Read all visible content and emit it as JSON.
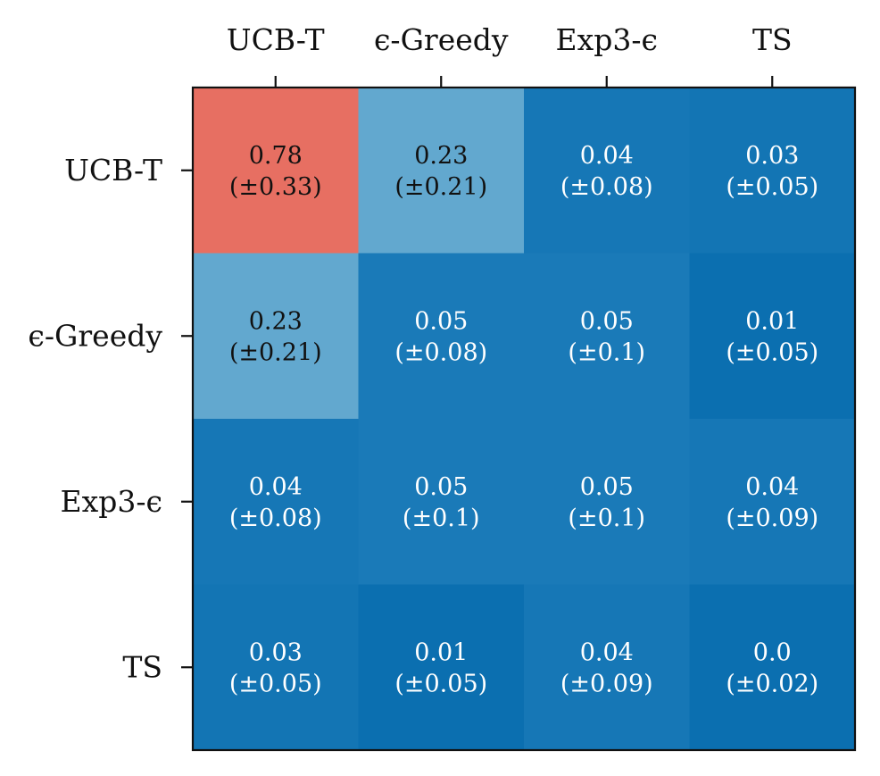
{
  "chart_data": {
    "type": "heatmap",
    "x_categories": [
      "UCB-T",
      "ϵ-Greedy",
      "Exp3-ϵ",
      "TS"
    ],
    "y_categories": [
      "UCB-T",
      "ϵ-Greedy",
      "Exp3-ϵ",
      "TS"
    ],
    "values": [
      [
        0.78,
        0.23,
        0.04,
        0.03
      ],
      [
        0.23,
        0.05,
        0.05,
        0.01
      ],
      [
        0.04,
        0.05,
        0.05,
        0.04
      ],
      [
        0.03,
        0.01,
        0.04,
        0.0
      ]
    ],
    "errors": [
      [
        0.33,
        0.21,
        0.08,
        0.05
      ],
      [
        0.21,
        0.08,
        0.1,
        0.05
      ],
      [
        0.08,
        0.1,
        0.1,
        0.09
      ],
      [
        0.05,
        0.05,
        0.09,
        0.02
      ]
    ],
    "value_labels": [
      [
        "0.78",
        "0.23",
        "0.04",
        "0.03"
      ],
      [
        "0.23",
        "0.05",
        "0.05",
        "0.01"
      ],
      [
        "0.04",
        "0.05",
        "0.05",
        "0.04"
      ],
      [
        "0.03",
        "0.01",
        "0.04",
        "0.0"
      ]
    ],
    "error_labels": [
      [
        "(±0.33)",
        "(±0.21)",
        "(±0.08)",
        "(±0.05)"
      ],
      [
        "(±0.21)",
        "(±0.08)",
        "(±0.1)",
        "(±0.05)"
      ],
      [
        "(±0.08)",
        "(±0.1)",
        "(±0.1)",
        "(±0.09)"
      ],
      [
        "(±0.05)",
        "(±0.05)",
        "(±0.09)",
        "(±0.02)"
      ]
    ],
    "x_axis_position": "top",
    "grid": false,
    "colors": {
      "high": "#e76f62",
      "mid": "#62a8cf",
      "low": "#1a7ab8",
      "lowest": "#0b6fb0",
      "text_dark": "#111111",
      "text_light": "#ffffff"
    }
  }
}
